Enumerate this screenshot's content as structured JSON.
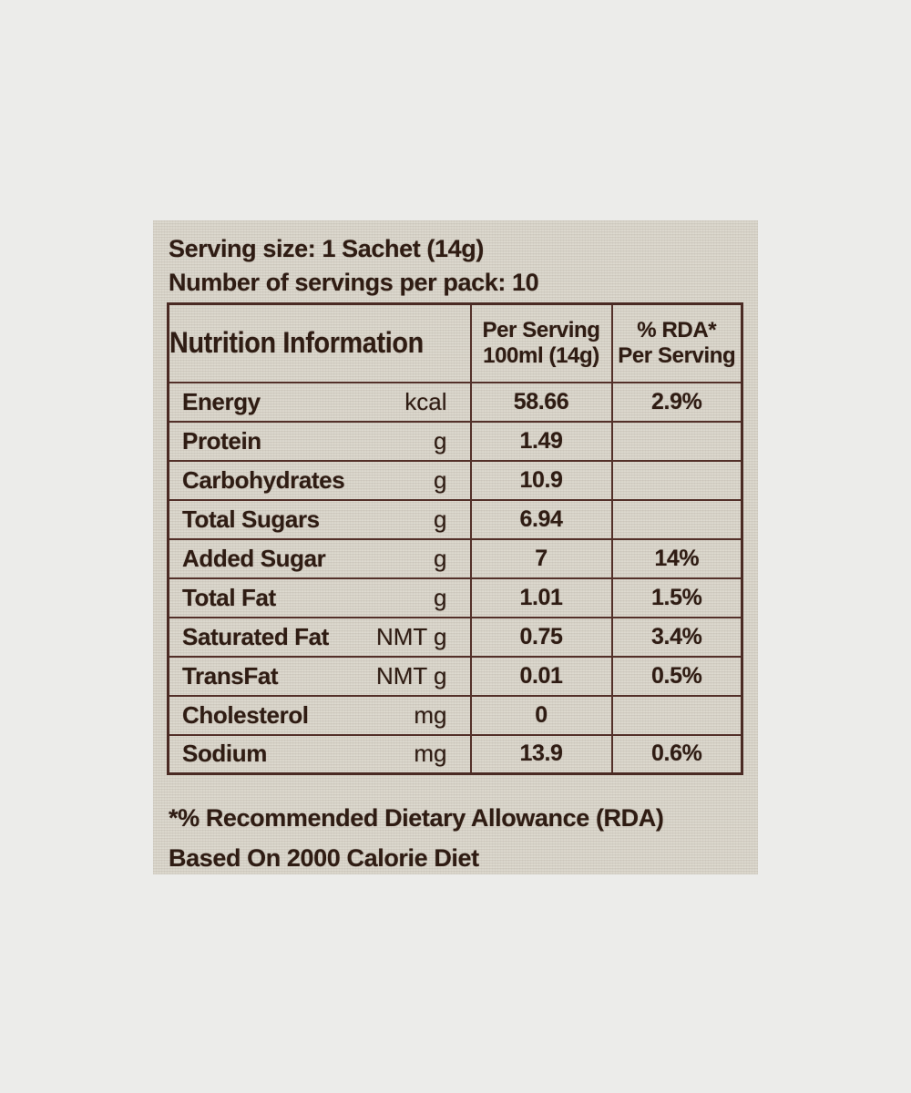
{
  "colors": {
    "page_bg": "#ececea",
    "label_bg": "#d9d5ca",
    "ink": "#2f1c13",
    "table_border": "#533029"
  },
  "intro": {
    "serving_size_line": "Serving size: 1 Sachet (14g)",
    "servings_per_pack_line": "Number of servings per pack: 10"
  },
  "table": {
    "header": {
      "col1": "Nutrition Information",
      "col2_line1": "Per Serving",
      "col2_line2": "100ml (14g)",
      "col3_line1": "% RDA*",
      "col3_line2": "Per Serving"
    },
    "rows": [
      {
        "nutrient": "Energy",
        "unit": "kcal",
        "per_serving": "58.66",
        "rda": "2.9%"
      },
      {
        "nutrient": "Protein",
        "unit": "g",
        "per_serving": "1.49",
        "rda": ""
      },
      {
        "nutrient": "Carbohydrates",
        "unit": "g",
        "per_serving": "10.9",
        "rda": ""
      },
      {
        "nutrient": "Total Sugars",
        "unit": "g",
        "per_serving": "6.94",
        "rda": ""
      },
      {
        "nutrient": "Added Sugar",
        "unit": "g",
        "per_serving": "7",
        "rda": "14%"
      },
      {
        "nutrient": "Total Fat",
        "unit": "g",
        "per_serving": "1.01",
        "rda": "1.5%"
      },
      {
        "nutrient": "Saturated Fat",
        "unit": "NMT g",
        "per_serving": "0.75",
        "rda": "3.4%"
      },
      {
        "nutrient": "TransFat",
        "unit": "NMT g",
        "per_serving": "0.01",
        "rda": "0.5%"
      },
      {
        "nutrient": "Cholesterol",
        "unit": "mg",
        "per_serving": "0",
        "rda": ""
      },
      {
        "nutrient": "Sodium",
        "unit": "mg",
        "per_serving": "13.9",
        "rda": "0.6%"
      }
    ]
  },
  "footnote": {
    "line1": "*% Recommended Dietary Allowance (RDA)",
    "line2": "Based On 2000 Calorie Diet"
  }
}
